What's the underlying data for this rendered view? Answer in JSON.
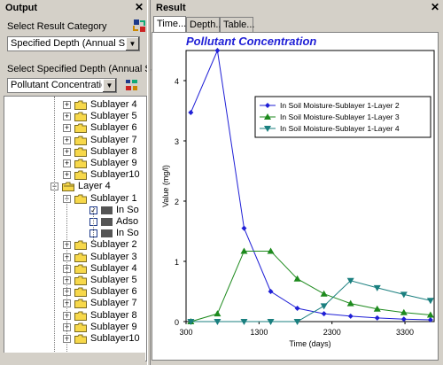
{
  "output": {
    "title": "Output",
    "category_label": "Select Result Category",
    "category_value": "Specified Depth (Annual Summar",
    "depth_label": "Select Specified Depth (Annual Summar",
    "depth_value": "Pollutant Concentration"
  },
  "tree": [
    {
      "label": "Sublayer 4",
      "type": "folder",
      "level": 2,
      "pm": "+"
    },
    {
      "label": "Sublayer 5",
      "type": "folder",
      "level": 2,
      "pm": "+"
    },
    {
      "label": "Sublayer 6",
      "type": "folder",
      "level": 2,
      "pm": "+"
    },
    {
      "label": "Sublayer 7",
      "type": "folder",
      "level": 2,
      "pm": "+"
    },
    {
      "label": "Sublayer 8",
      "type": "folder",
      "level": 2,
      "pm": "+"
    },
    {
      "label": "Sublayer 9",
      "type": "folder",
      "level": 2,
      "pm": "+"
    },
    {
      "label": "Sublayer10",
      "type": "folder",
      "level": 2,
      "pm": "+"
    },
    {
      "label": "Layer 4",
      "type": "open-folder",
      "level": 1,
      "pm": "-"
    },
    {
      "label": "Sublayer 1",
      "type": "folder",
      "level": 2,
      "pm": "-"
    },
    {
      "label": "In So",
      "type": "item",
      "level": 3,
      "checked": true
    },
    {
      "label": "Adso",
      "type": "item",
      "level": 3,
      "checked": false
    },
    {
      "label": "In So",
      "type": "item",
      "level": 3,
      "checked": false
    },
    {
      "label": "Sublayer 2",
      "type": "folder",
      "level": 2,
      "pm": "+"
    },
    {
      "label": "Sublayer 3",
      "type": "folder",
      "level": 2,
      "pm": "+"
    },
    {
      "label": "Sublayer 4",
      "type": "folder",
      "level": 2,
      "pm": "+"
    },
    {
      "label": "Sublayer 5",
      "type": "folder",
      "level": 2,
      "pm": "+"
    },
    {
      "label": "Sublayer 6",
      "type": "folder",
      "level": 2,
      "pm": "+"
    },
    {
      "label": "Sublayer 7",
      "type": "folder",
      "level": 2,
      "pm": "+"
    },
    {
      "label": "Sublayer 8",
      "type": "folder",
      "level": 2,
      "pm": "+"
    },
    {
      "label": "Sublayer 9",
      "type": "folder",
      "level": 2,
      "pm": "+"
    },
    {
      "label": "Sublayer10",
      "type": "folder",
      "level": 2,
      "pm": "+"
    }
  ],
  "result": {
    "title": "Result",
    "tabs": [
      "Time...",
      "Depth...",
      "Table..."
    ]
  },
  "colors": {
    "series1": "#1f1fd6",
    "series2": "#1d8a1d",
    "series3": "#1a7f7f",
    "title": "#1f1fd6",
    "folder": "#f7d84a"
  },
  "chart_data": {
    "type": "line",
    "title": "Pollutant Concentration",
    "xlabel": "Time (days)",
    "ylabel": "Value (mg/l)",
    "xlim": [
      300,
      3700
    ],
    "ylim": [
      0,
      4.5
    ],
    "xticks": [
      300,
      1300,
      2300,
      3300
    ],
    "yticks": [
      0,
      1,
      2,
      3,
      4
    ],
    "legend_position": "top-right",
    "series": [
      {
        "name": "In Soil Moisture-Sublayer 1-Layer 2",
        "marker": "diamond",
        "x": [
          365,
          730,
          1095,
          1460,
          1825,
          2190,
          2555,
          2920,
          3285,
          3650
        ],
        "y": [
          3.47,
          4.5,
          1.55,
          0.5,
          0.22,
          0.13,
          0.09,
          0.06,
          0.04,
          0.03
        ]
      },
      {
        "name": "In Soil Moisture-Sublayer 1-Layer 3",
        "marker": "triangle-up",
        "x": [
          365,
          730,
          1095,
          1460,
          1825,
          2190,
          2555,
          2920,
          3285,
          3650
        ],
        "y": [
          0.0,
          0.13,
          1.17,
          1.17,
          0.71,
          0.46,
          0.3,
          0.21,
          0.15,
          0.11
        ]
      },
      {
        "name": "In Soil Moisture-Sublayer 1-Layer 4",
        "marker": "triangle-down",
        "x": [
          365,
          730,
          1095,
          1460,
          1825,
          2190,
          2555,
          2920,
          3285,
          3650
        ],
        "y": [
          0.0,
          0.0,
          0.0,
          0.0,
          0.0,
          0.26,
          0.68,
          0.56,
          0.45,
          0.35
        ]
      }
    ]
  }
}
